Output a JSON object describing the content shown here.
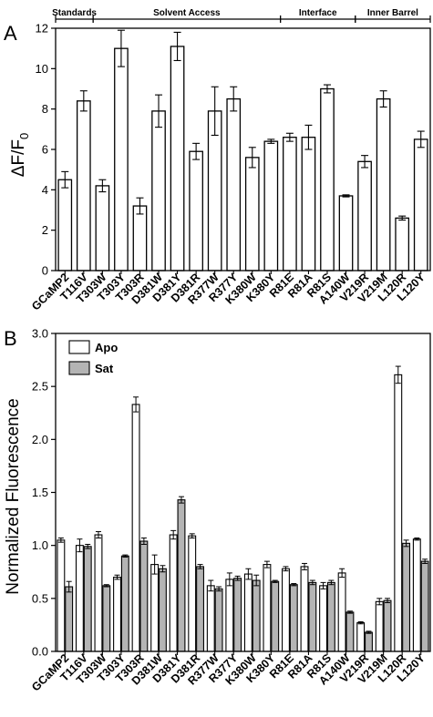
{
  "chart_data": [
    {
      "panel": "A",
      "type": "bar",
      "ylabel": "ΔF/F₀",
      "ylabel_base": "ΔF/F",
      "ylabel_sub": "0",
      "ylim": [
        0,
        12
      ],
      "yticks": [
        "0",
        "2",
        "4",
        "6",
        "8",
        "10",
        "12"
      ],
      "categories": [
        "GCaMP2",
        "T116V",
        "T303W",
        "T303Y",
        "T303R",
        "D381W",
        "D381Y",
        "D381R",
        "R377W",
        "R377Y",
        "K380W",
        "K380Y",
        "R81E",
        "R81A",
        "R81S",
        "A140W",
        "V219R",
        "V219M",
        "L120R",
        "L120Y"
      ],
      "values": [
        4.5,
        8.4,
        4.2,
        11.0,
        3.2,
        7.9,
        11.1,
        5.9,
        7.9,
        8.5,
        5.6,
        6.4,
        6.6,
        6.6,
        9.0,
        3.7,
        5.4,
        8.5,
        2.6,
        6.5
      ],
      "errors": [
        0.4,
        0.5,
        0.3,
        0.9,
        0.4,
        0.8,
        0.7,
        0.4,
        1.2,
        0.6,
        0.5,
        0.1,
        0.2,
        0.6,
        0.2,
        0.05,
        0.3,
        0.4,
        0.1,
        0.4
      ],
      "groups": [
        {
          "label": "Standards",
          "start": 0,
          "end": 1
        },
        {
          "label": "Solvent Access",
          "start": 2,
          "end": 11
        },
        {
          "label": "Interface",
          "start": 12,
          "end": 15
        },
        {
          "label": "Inner Barrel",
          "start": 16,
          "end": 19
        }
      ]
    },
    {
      "panel": "B",
      "type": "bar",
      "ylabel": "Normalized Fluorescence",
      "ylim": [
        0,
        3.0
      ],
      "yticks": [
        "0.0",
        "0.5",
        "1.0",
        "1.5",
        "2.0",
        "2.5",
        "3.0"
      ],
      "legend_position": "top-left",
      "categories": [
        "GCaMP2",
        "T116V",
        "T303W",
        "T303Y",
        "T303R",
        "D381W",
        "D381Y",
        "D381R",
        "R377W",
        "R377Y",
        "K380W",
        "K380Y",
        "R81E",
        "R81A",
        "R81S",
        "A140W",
        "V219R",
        "V219M",
        "L120R",
        "L120Y"
      ],
      "series": [
        {
          "name": "Apo",
          "color": "#ffffff",
          "values": [
            1.05,
            1.0,
            1.1,
            0.7,
            2.33,
            0.82,
            1.1,
            1.09,
            0.62,
            0.68,
            0.73,
            0.82,
            0.78,
            0.8,
            0.62,
            0.74,
            0.27,
            0.47,
            2.61,
            1.06
          ],
          "errors": [
            0.02,
            0.06,
            0.03,
            0.02,
            0.07,
            0.09,
            0.04,
            0.02,
            0.05,
            0.06,
            0.05,
            0.03,
            0.02,
            0.03,
            0.03,
            0.04,
            0.01,
            0.03,
            0.08,
            0.01
          ]
        },
        {
          "name": "Sat",
          "color": "#b4b4b4",
          "values": [
            0.61,
            0.99,
            0.62,
            0.9,
            1.04,
            0.78,
            1.43,
            0.8,
            0.59,
            0.69,
            0.67,
            0.66,
            0.63,
            0.65,
            0.65,
            0.37,
            0.18,
            0.48,
            1.02,
            0.85
          ],
          "errors": [
            0.05,
            0.02,
            0.01,
            0.01,
            0.03,
            0.03,
            0.03,
            0.02,
            0.02,
            0.02,
            0.05,
            0.01,
            0.01,
            0.02,
            0.02,
            0.01,
            0.01,
            0.02,
            0.03,
            0.02
          ]
        }
      ]
    }
  ]
}
